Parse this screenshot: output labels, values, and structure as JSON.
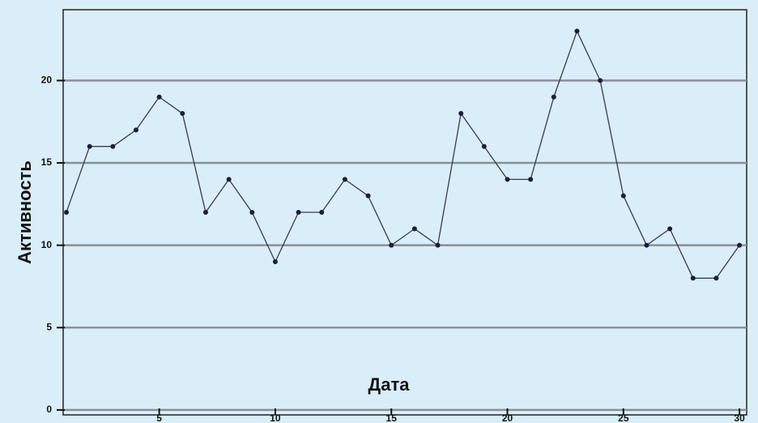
{
  "chart_data": {
    "type": "line",
    "x_label": "Дата",
    "y_label": "Активность",
    "x": [
      1,
      2,
      3,
      4,
      5,
      6,
      7,
      8,
      9,
      10,
      11,
      12,
      13,
      14,
      15,
      16,
      17,
      18,
      19,
      20,
      21,
      22,
      23,
      24,
      25,
      26,
      27,
      28,
      29,
      30
    ],
    "series": [
      {
        "color": "#3a3a4a",
        "values": [
          12,
          16,
          16,
          17,
          19,
          18,
          12,
          14,
          12,
          9,
          12,
          12,
          14,
          13,
          10,
          11,
          10,
          18,
          16,
          14,
          14,
          19,
          23,
          20,
          13,
          10,
          11,
          8,
          8,
          10
        ]
      }
    ],
    "xlim": [
      0.86,
      30.31
    ],
    "xticks": [
      5,
      10,
      15,
      20,
      25,
      30
    ],
    "ylim": [
      -0.3,
      24.3
    ],
    "yticks": [
      0,
      5,
      10,
      15,
      20
    ],
    "grid": true
  }
}
